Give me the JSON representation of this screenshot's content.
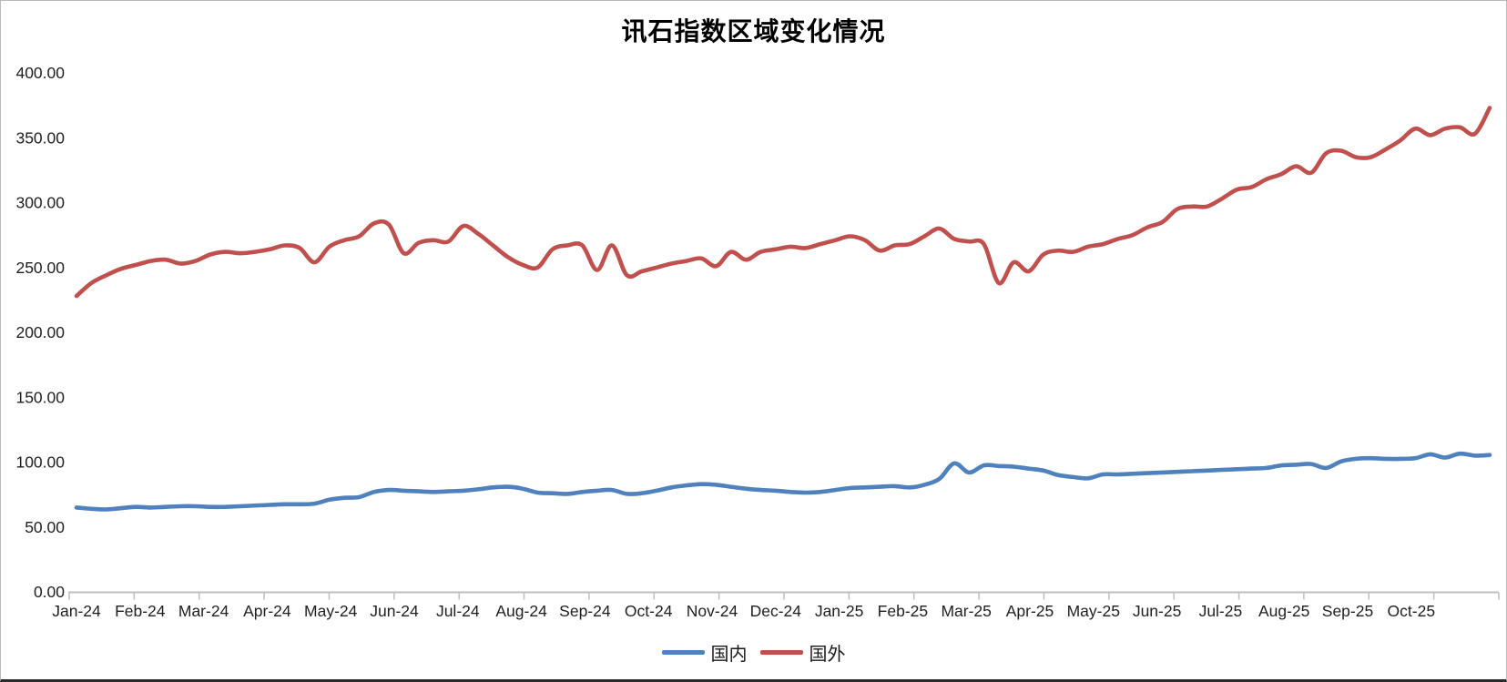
{
  "title": "讯石指数区域变化情况",
  "chart_data": {
    "type": "line",
    "title": "讯石指数区域变化情况",
    "smoothed": true,
    "grid": "off",
    "legend_position": "bottom",
    "x_axis": {
      "labels": [
        "Jan-24",
        "Feb-24",
        "Mar-24",
        "Apr-24",
        "May-24",
        "Jun-24",
        "Jul-24",
        "Aug-24",
        "Sep-24",
        "Oct-24",
        "Nov-24",
        "Dec-24",
        "Jan-25",
        "Feb-25",
        "Mar-25",
        "Apr-25",
        "May-25",
        "Jun-25",
        "Jul-25",
        "Aug-25",
        "Sep-25",
        "Oct-25"
      ]
    },
    "y_axis": {
      "min": 0,
      "max": 400,
      "step": 50,
      "ticks": [
        "0.00",
        "50.00",
        "100.00",
        "150.00",
        "200.00",
        "250.00",
        "300.00",
        "350.00",
        "400.00"
      ]
    },
    "legend": [
      {
        "name": "国内",
        "color": "#4F81BD"
      },
      {
        "name": "国外",
        "color": "#C0504D"
      }
    ],
    "series": [
      {
        "name": "国内",
        "color": "#4F81BD",
        "values": [
          65,
          64,
          63.5,
          64.5,
          65.5,
          65,
          65.5,
          66,
          66,
          65.5,
          65.5,
          66,
          66.5,
          67,
          67.5,
          67.5,
          68,
          71,
          72.5,
          73,
          77,
          78.5,
          78,
          77.5,
          77,
          77.5,
          78,
          79,
          80.5,
          81,
          79.5,
          76.5,
          76,
          75.5,
          77,
          78,
          78.5,
          75.5,
          76,
          78,
          80.5,
          82,
          83,
          82.5,
          81,
          79.5,
          78.5,
          78,
          77,
          76.5,
          77,
          78.5,
          80,
          80.5,
          81,
          81.5,
          80.5,
          82.5,
          87,
          99,
          92,
          97.5,
          97,
          96.5,
          95,
          93.5,
          90,
          88.5,
          87.5,
          90.5,
          90.5,
          91,
          91.5,
          92,
          92.5,
          93,
          93.5,
          94,
          94.5,
          95,
          95.5,
          97.5,
          98,
          98.5,
          95.5,
          100.5,
          102.5,
          103,
          102.5,
          102.5,
          103,
          106,
          103.5,
          106.5,
          105,
          105.5
        ]
      },
      {
        "name": "国外",
        "color": "#C0504D",
        "values": [
          228,
          238,
          244,
          249,
          252,
          255,
          256,
          253,
          255,
          260,
          262,
          261,
          262,
          264,
          267,
          265,
          254,
          266,
          271,
          274,
          284,
          283,
          261,
          269,
          271,
          270,
          282,
          276,
          267,
          258,
          252,
          250,
          264,
          267,
          267,
          248,
          267,
          244,
          247,
          250,
          253,
          255,
          257,
          251,
          262,
          256,
          262,
          264,
          266,
          265,
          268,
          271,
          274,
          271,
          263,
          267,
          268,
          274,
          280,
          272,
          270,
          268,
          238,
          254,
          247,
          260,
          263,
          262,
          266,
          268,
          272,
          275,
          281,
          285,
          295,
          297,
          297,
          303,
          310,
          312,
          318,
          322,
          328,
          323,
          338,
          340,
          335,
          335,
          341,
          348,
          357,
          352,
          357,
          358,
          353,
          373
        ]
      }
    ]
  }
}
